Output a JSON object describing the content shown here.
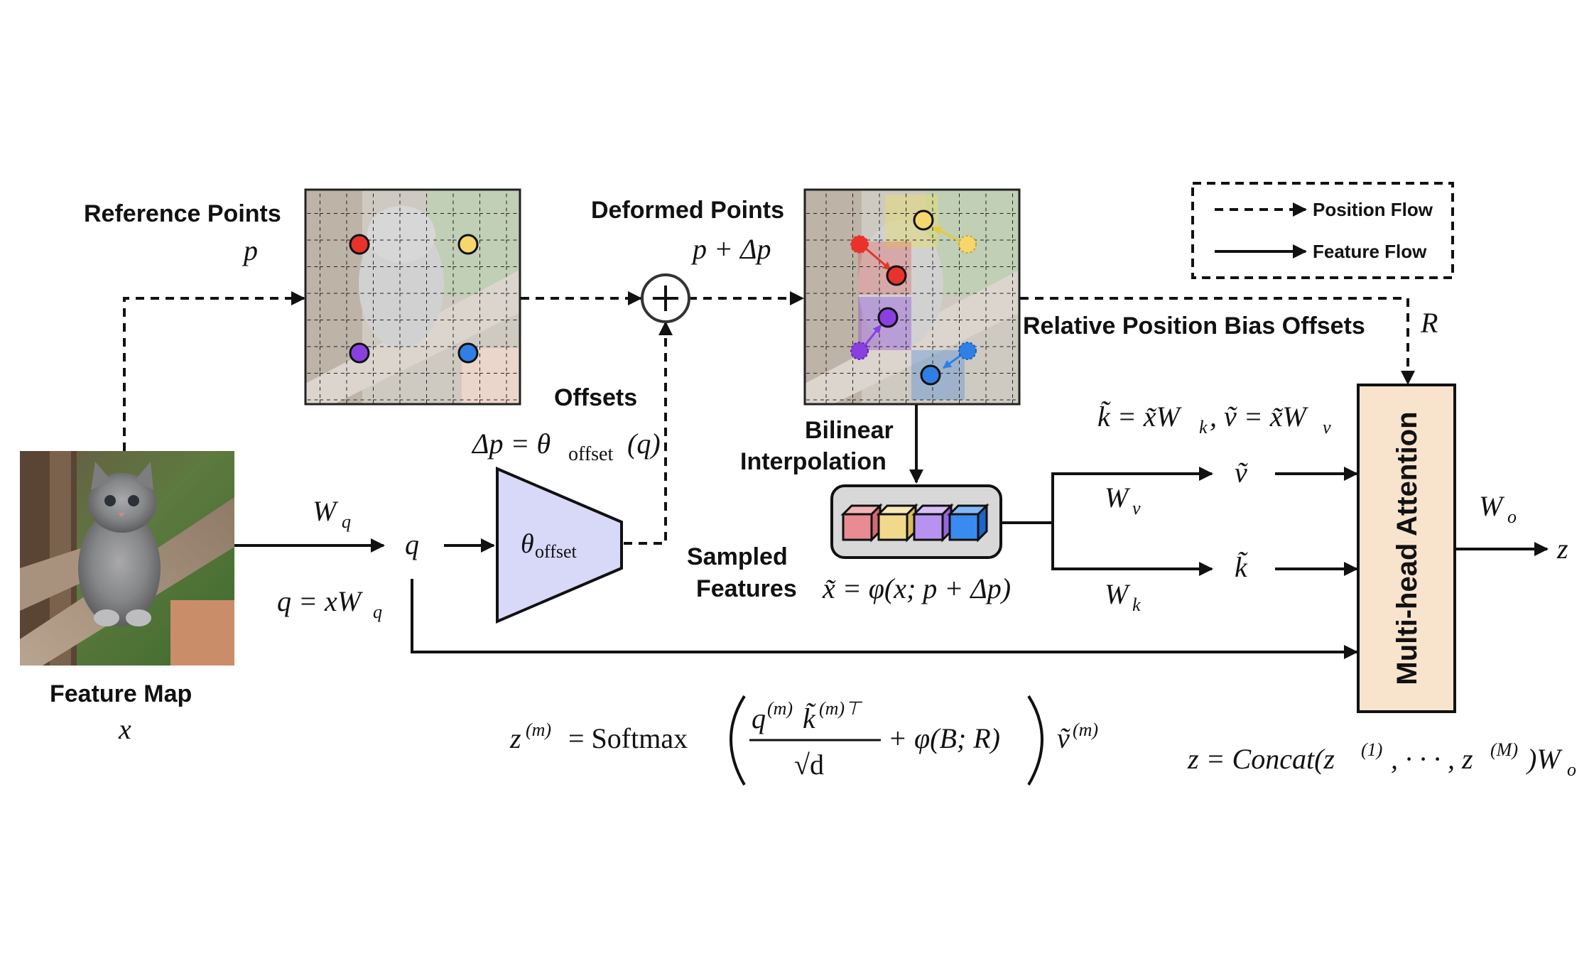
{
  "labels": {
    "reference_points": "Reference Points",
    "deformed_points": "Deformed Points",
    "offsets": "Offsets",
    "bilinear": "Bilinear",
    "interpolation": "Interpolation",
    "sampled": "Sampled",
    "features": "Features",
    "relative_bias": "Relative Position Bias Offsets",
    "feature_map": "Feature Map",
    "multi_head_attention": "Multi-head Attention",
    "theta_offset_block": "θ",
    "theta_offset_sub": "offset"
  },
  "legend": {
    "position_flow": "Position Flow",
    "feature_flow": "Feature Flow"
  },
  "math": {
    "p": "p",
    "p_delta": "p + Δp",
    "delta_p_eq": "Δp = θ",
    "delta_p_eq_sub": "offset",
    "delta_p_eq_tail": "(q)",
    "wq": "W",
    "wq_sub": "q",
    "q": "q",
    "q_eq": "q = xW",
    "q_eq_sub": "q",
    "x": "x",
    "x_tilde_eq": "x̃ = φ(x; p + Δp)",
    "kv_eq": "k̃ = x̃W",
    "kv_eq_sub_k": "k",
    "kv_eq_mid": ", ṽ = x̃W",
    "kv_eq_sub_v": "v",
    "wv": "W",
    "wv_sub": "v",
    "wk": "W",
    "wk_sub": "k",
    "v_tilde": "ṽ",
    "k_tilde": "k̃",
    "wo": "W",
    "wo_sub": "o",
    "z": "z",
    "R": "R",
    "attn_lhs": "z",
    "attn_lhs_sup": "(m)",
    "attn_softmax": "= Softmax",
    "attn_num": "q",
    "attn_num_sup": "(m)",
    "attn_num_k": "k̃",
    "attn_num_k_sup": "(m)⊤",
    "attn_den": "√d",
    "attn_bias": "+ φ(B; R)",
    "attn_v": "ṽ",
    "attn_v_sup": "(m)",
    "concat_eq": "z = Concat(z",
    "concat_sup1": "(1)",
    "concat_mid": ", · · · , z",
    "concat_supM": "(M)",
    "concat_tail": ")W",
    "concat_sub": "o"
  },
  "colors": {
    "red": "#e8322b",
    "yellow": "#f5d76e",
    "purple": "#8a3fe0",
    "blue": "#2f7fe6",
    "offset_net_fill": "#d8d8f8",
    "attention_fill": "#f8e3cc"
  }
}
